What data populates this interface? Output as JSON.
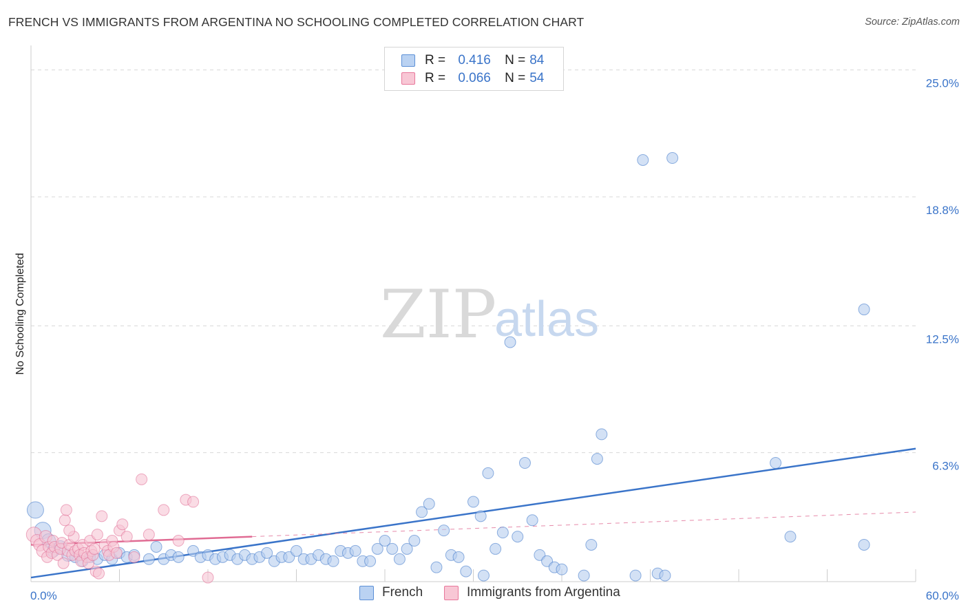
{
  "title": "FRENCH VS IMMIGRANTS FROM ARGENTINA NO SCHOOLING COMPLETED CORRELATION CHART",
  "source": "Source: ZipAtlas.com",
  "watermark": {
    "zip": "ZIP",
    "atlas": "atlas"
  },
  "stats": [
    {
      "r_label": "R =",
      "r_value": "0.416",
      "n_label": "N =",
      "n_value": "84",
      "color": "#5b8fd6",
      "fill": "#bad2f2"
    },
    {
      "r_label": "R =",
      "r_value": "0.066",
      "n_label": "N =",
      "n_value": "54",
      "color": "#e8769a",
      "fill": "#f8c7d5"
    }
  ],
  "colors": {
    "blue": "#3a74c9",
    "blue_fill": "#b5cdee",
    "pink": "#e06b93",
    "pink_fill": "#f7c4d3",
    "grid": "#d8d8d8"
  },
  "chart_data": {
    "type": "scatter",
    "title": "FRENCH VS IMMIGRANTS FROM ARGENTINA NO SCHOOLING COMPLETED CORRELATION CHART",
    "xlabel": "",
    "ylabel": "No Schooling Completed",
    "xlim": [
      0,
      60
    ],
    "ylim": [
      0,
      26.2
    ],
    "x_tick_labels": [
      "0.0%",
      "60.0%"
    ],
    "y_ticks": [
      6.3,
      12.5,
      18.8,
      25.0
    ],
    "y_tick_labels": [
      "6.3%",
      "12.5%",
      "18.8%",
      "25.0%"
    ],
    "grid": true,
    "legend_position": "bottom-center",
    "series": [
      {
        "name": "French",
        "color": "#3a74c9",
        "fill": "#b5cdee",
        "trend": {
          "x": [
            0,
            60
          ],
          "y": [
            0.2,
            6.5
          ],
          "style": "solid"
        },
        "points": [
          [
            0.3,
            3.5,
            12
          ],
          [
            0.8,
            2.5,
            12
          ],
          [
            1.2,
            2.0,
            10
          ],
          [
            1.5,
            1.5,
            9
          ],
          [
            2.0,
            1.7,
            9
          ],
          [
            2.5,
            1.3,
            9
          ],
          [
            3.0,
            1.2,
            8
          ],
          [
            3.5,
            1.0,
            8
          ],
          [
            4.0,
            1.2,
            8
          ],
          [
            4.5,
            1.1,
            8
          ],
          [
            5.0,
            1.3,
            8
          ],
          [
            5.5,
            1.1,
            8
          ],
          [
            6.0,
            1.4,
            8
          ],
          [
            6.5,
            1.2,
            8
          ],
          [
            7.0,
            1.3,
            8
          ],
          [
            8.0,
            1.1,
            8
          ],
          [
            8.5,
            1.7,
            8
          ],
          [
            9.0,
            1.1,
            8
          ],
          [
            9.5,
            1.3,
            8
          ],
          [
            10.0,
            1.2,
            8
          ],
          [
            11.0,
            1.5,
            8
          ],
          [
            11.5,
            1.2,
            8
          ],
          [
            12.0,
            1.3,
            8
          ],
          [
            12.5,
            1.1,
            8
          ],
          [
            13.0,
            1.2,
            8
          ],
          [
            13.5,
            1.3,
            8
          ],
          [
            14.0,
            1.1,
            8
          ],
          [
            14.5,
            1.3,
            8
          ],
          [
            15.0,
            1.1,
            8
          ],
          [
            15.5,
            1.2,
            8
          ],
          [
            16.0,
            1.4,
            8
          ],
          [
            16.5,
            1.0,
            8
          ],
          [
            17.0,
            1.2,
            8
          ],
          [
            17.5,
            1.2,
            8
          ],
          [
            18.0,
            1.5,
            8
          ],
          [
            18.5,
            1.1,
            8
          ],
          [
            19.0,
            1.1,
            8
          ],
          [
            19.5,
            1.3,
            8
          ],
          [
            20.0,
            1.1,
            8
          ],
          [
            20.5,
            1.0,
            8
          ],
          [
            21.0,
            1.5,
            8
          ],
          [
            21.5,
            1.4,
            8
          ],
          [
            22.0,
            1.5,
            8
          ],
          [
            22.5,
            1.0,
            8
          ],
          [
            23.0,
            1.0,
            8
          ],
          [
            23.5,
            1.6,
            8
          ],
          [
            24.0,
            2.0,
            8
          ],
          [
            24.5,
            1.6,
            8
          ],
          [
            25.0,
            1.1,
            8
          ],
          [
            25.5,
            1.6,
            8
          ],
          [
            26.0,
            2.0,
            8
          ],
          [
            26.5,
            3.4,
            8
          ],
          [
            27.0,
            3.8,
            8
          ],
          [
            27.5,
            0.7,
            8
          ],
          [
            28.0,
            2.5,
            8
          ],
          [
            28.5,
            1.3,
            8
          ],
          [
            29.0,
            1.2,
            8
          ],
          [
            29.5,
            0.5,
            8
          ],
          [
            30.0,
            3.9,
            8
          ],
          [
            30.5,
            3.2,
            8
          ],
          [
            30.7,
            0.3,
            8
          ],
          [
            31.0,
            5.3,
            8
          ],
          [
            31.5,
            1.6,
            8
          ],
          [
            32.0,
            2.4,
            8
          ],
          [
            32.5,
            11.7,
            8
          ],
          [
            33.0,
            2.2,
            8
          ],
          [
            33.5,
            5.8,
            8
          ],
          [
            34.0,
            3.0,
            8
          ],
          [
            34.5,
            1.3,
            8
          ],
          [
            35.0,
            1.0,
            8
          ],
          [
            35.5,
            0.7,
            8
          ],
          [
            36.0,
            0.6,
            8
          ],
          [
            37.5,
            0.3,
            8
          ],
          [
            38.0,
            1.8,
            8
          ],
          [
            38.4,
            6.0,
            8
          ],
          [
            38.7,
            7.2,
            8
          ],
          [
            41.0,
            0.3,
            8
          ],
          [
            41.5,
            20.6,
            8
          ],
          [
            42.5,
            0.4,
            8
          ],
          [
            43.5,
            20.7,
            8
          ],
          [
            43.0,
            0.3,
            8
          ],
          [
            50.5,
            5.8,
            8
          ],
          [
            51.5,
            2.2,
            8
          ],
          [
            56.5,
            1.8,
            8
          ],
          [
            56.5,
            13.3,
            8
          ]
        ]
      },
      {
        "name": "Immigrants from Argentina",
        "color": "#e06b93",
        "fill": "#f7c4d3",
        "trend_solid": {
          "x": [
            0,
            15
          ],
          "y": [
            1.8,
            2.2
          ]
        },
        "trend_dashed": {
          "x": [
            15,
            60
          ],
          "y": [
            2.2,
            3.4
          ]
        },
        "points": [
          [
            0.2,
            2.3,
            11
          ],
          [
            0.4,
            2.0,
            9
          ],
          [
            0.6,
            1.8,
            9
          ],
          [
            0.8,
            1.5,
            9
          ],
          [
            1.0,
            2.2,
            9
          ],
          [
            1.1,
            1.2,
            8
          ],
          [
            1.2,
            1.7,
            8
          ],
          [
            1.4,
            1.4,
            8
          ],
          [
            1.5,
            2.0,
            8
          ],
          [
            1.6,
            1.7,
            8
          ],
          [
            1.8,
            1.3,
            8
          ],
          [
            2.0,
            1.6,
            8
          ],
          [
            2.1,
            1.9,
            8
          ],
          [
            2.2,
            0.9,
            8
          ],
          [
            2.3,
            3.0,
            8
          ],
          [
            2.4,
            3.5,
            8
          ],
          [
            2.5,
            1.5,
            8
          ],
          [
            2.6,
            1.8,
            8
          ],
          [
            2.8,
            1.3,
            8
          ],
          [
            2.9,
            2.2,
            8
          ],
          [
            3.0,
            1.5,
            8
          ],
          [
            3.2,
            1.6,
            8
          ],
          [
            3.3,
            1.3,
            8
          ],
          [
            3.4,
            1.0,
            8
          ],
          [
            3.5,
            1.8,
            8
          ],
          [
            3.6,
            1.4,
            8
          ],
          [
            3.8,
            1.2,
            8
          ],
          [
            3.9,
            0.9,
            8
          ],
          [
            4.0,
            2.0,
            8
          ],
          [
            4.1,
            1.5,
            8
          ],
          [
            4.2,
            1.3,
            8
          ],
          [
            4.3,
            1.6,
            8
          ],
          [
            4.4,
            0.5,
            8
          ],
          [
            4.5,
            2.3,
            8
          ],
          [
            4.6,
            0.4,
            8
          ],
          [
            4.8,
            3.2,
            8
          ],
          [
            5.0,
            1.8,
            8
          ],
          [
            5.2,
            1.5,
            8
          ],
          [
            5.3,
            1.3,
            8
          ],
          [
            5.5,
            2.0,
            8
          ],
          [
            5.6,
            1.7,
            8
          ],
          [
            5.8,
            1.4,
            8
          ],
          [
            6.0,
            2.5,
            8
          ],
          [
            6.2,
            2.8,
            8
          ],
          [
            6.5,
            2.2,
            8
          ],
          [
            7.0,
            1.2,
            8
          ],
          [
            7.5,
            5.0,
            8
          ],
          [
            8.0,
            2.3,
            8
          ],
          [
            9.0,
            3.5,
            8
          ],
          [
            10.0,
            2.0,
            8
          ],
          [
            10.5,
            4.0,
            8
          ],
          [
            11.0,
            3.9,
            8
          ],
          [
            12.0,
            0.2,
            8
          ],
          [
            2.6,
            2.5,
            8
          ]
        ]
      }
    ]
  },
  "legend": [
    {
      "label": "French"
    },
    {
      "label": "Immigrants from Argentina"
    }
  ]
}
